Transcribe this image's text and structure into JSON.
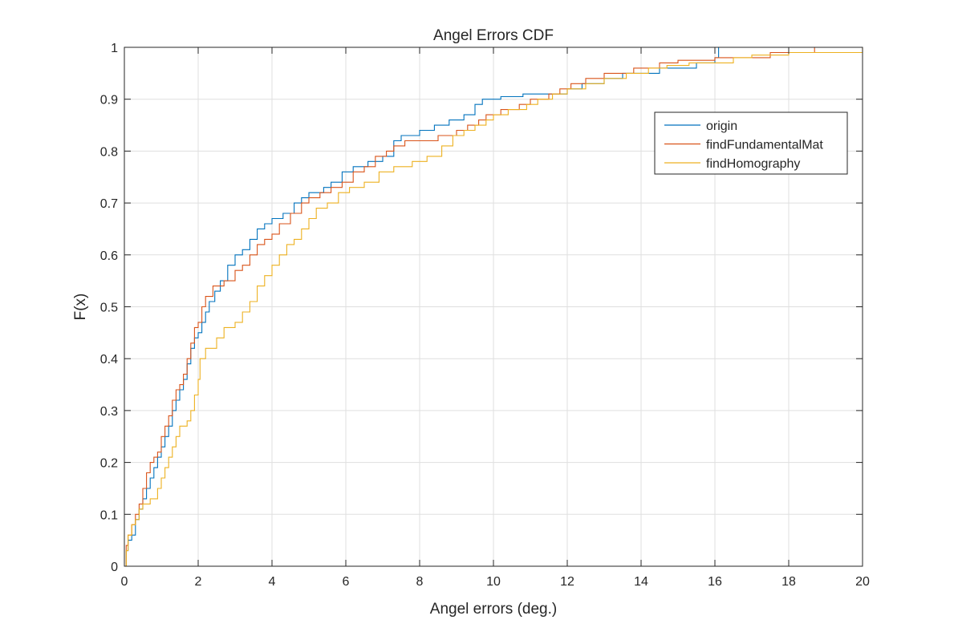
{
  "chart_data": {
    "type": "line",
    "step": true,
    "title": "Angel Errors CDF",
    "xlabel": "Angel errors (deg.)",
    "ylabel": "F(x)",
    "xlim": [
      0,
      20
    ],
    "ylim": [
      0,
      1
    ],
    "grid": true,
    "legend_position": "top-right",
    "x_ticks": [
      "0",
      "2",
      "4",
      "6",
      "8",
      "10",
      "12",
      "14",
      "16",
      "18",
      "20"
    ],
    "y_ticks": [
      "0",
      "0.1",
      "0.2",
      "0.3",
      "0.4",
      "0.5",
      "0.6",
      "0.7",
      "0.8",
      "0.9",
      "1"
    ],
    "series": [
      {
        "name": "origin",
        "color": "#0072bd",
        "points": [
          [
            0,
            0
          ],
          [
            0.05,
            0.03
          ],
          [
            0.1,
            0.05
          ],
          [
            0.2,
            0.06
          ],
          [
            0.3,
            0.09
          ],
          [
            0.4,
            0.11
          ],
          [
            0.5,
            0.13
          ],
          [
            0.6,
            0.15
          ],
          [
            0.7,
            0.17
          ],
          [
            0.8,
            0.19
          ],
          [
            0.9,
            0.21
          ],
          [
            1.0,
            0.23
          ],
          [
            1.1,
            0.25
          ],
          [
            1.2,
            0.27
          ],
          [
            1.3,
            0.3
          ],
          [
            1.4,
            0.32
          ],
          [
            1.5,
            0.34
          ],
          [
            1.6,
            0.36
          ],
          [
            1.7,
            0.39
          ],
          [
            1.8,
            0.42
          ],
          [
            1.9,
            0.44
          ],
          [
            2.0,
            0.45
          ],
          [
            2.1,
            0.47
          ],
          [
            2.2,
            0.49
          ],
          [
            2.3,
            0.51
          ],
          [
            2.45,
            0.53
          ],
          [
            2.6,
            0.55
          ],
          [
            2.8,
            0.58
          ],
          [
            3.0,
            0.6
          ],
          [
            3.2,
            0.61
          ],
          [
            3.4,
            0.63
          ],
          [
            3.6,
            0.65
          ],
          [
            3.8,
            0.66
          ],
          [
            4.0,
            0.67
          ],
          [
            4.3,
            0.68
          ],
          [
            4.6,
            0.7
          ],
          [
            4.8,
            0.71
          ],
          [
            5.0,
            0.72
          ],
          [
            5.4,
            0.73
          ],
          [
            5.6,
            0.74
          ],
          [
            5.9,
            0.76
          ],
          [
            6.2,
            0.77
          ],
          [
            6.6,
            0.78
          ],
          [
            7.0,
            0.79
          ],
          [
            7.3,
            0.82
          ],
          [
            7.5,
            0.83
          ],
          [
            8.0,
            0.84
          ],
          [
            8.4,
            0.85
          ],
          [
            8.8,
            0.86
          ],
          [
            9.2,
            0.87
          ],
          [
            9.5,
            0.89
          ],
          [
            9.7,
            0.9
          ],
          [
            10.2,
            0.905
          ],
          [
            10.8,
            0.91
          ],
          [
            12.0,
            0.92
          ],
          [
            12.4,
            0.93
          ],
          [
            13.0,
            0.94
          ],
          [
            13.5,
            0.95
          ],
          [
            14.5,
            0.96
          ],
          [
            15.5,
            0.97
          ],
          [
            16.0,
            0.98
          ],
          [
            16.1,
            1.0
          ],
          [
            18.0,
            1.0
          ]
        ]
      },
      {
        "name": "findFundamentalMat",
        "color": "#d95319",
        "points": [
          [
            0,
            0
          ],
          [
            0.05,
            0.04
          ],
          [
            0.1,
            0.06
          ],
          [
            0.2,
            0.08
          ],
          [
            0.3,
            0.1
          ],
          [
            0.4,
            0.12
          ],
          [
            0.5,
            0.15
          ],
          [
            0.6,
            0.18
          ],
          [
            0.7,
            0.2
          ],
          [
            0.8,
            0.21
          ],
          [
            0.9,
            0.22
          ],
          [
            1.0,
            0.25
          ],
          [
            1.1,
            0.27
          ],
          [
            1.2,
            0.29
          ],
          [
            1.3,
            0.32
          ],
          [
            1.4,
            0.34
          ],
          [
            1.5,
            0.35
          ],
          [
            1.6,
            0.37
          ],
          [
            1.7,
            0.4
          ],
          [
            1.8,
            0.43
          ],
          [
            1.9,
            0.46
          ],
          [
            2.0,
            0.47
          ],
          [
            2.1,
            0.5
          ],
          [
            2.2,
            0.52
          ],
          [
            2.4,
            0.54
          ],
          [
            2.7,
            0.55
          ],
          [
            3.0,
            0.57
          ],
          [
            3.2,
            0.58
          ],
          [
            3.4,
            0.6
          ],
          [
            3.6,
            0.62
          ],
          [
            3.8,
            0.63
          ],
          [
            4.0,
            0.64
          ],
          [
            4.2,
            0.66
          ],
          [
            4.5,
            0.68
          ],
          [
            4.8,
            0.7
          ],
          [
            5.0,
            0.71
          ],
          [
            5.3,
            0.72
          ],
          [
            5.6,
            0.73
          ],
          [
            5.9,
            0.74
          ],
          [
            6.2,
            0.76
          ],
          [
            6.5,
            0.77
          ],
          [
            6.8,
            0.79
          ],
          [
            7.1,
            0.8
          ],
          [
            7.3,
            0.81
          ],
          [
            7.6,
            0.82
          ],
          [
            7.9,
            0.82
          ],
          [
            8.5,
            0.83
          ],
          [
            9.0,
            0.84
          ],
          [
            9.3,
            0.85
          ],
          [
            9.6,
            0.86
          ],
          [
            9.8,
            0.87
          ],
          [
            10.2,
            0.88
          ],
          [
            10.7,
            0.89
          ],
          [
            11.0,
            0.9
          ],
          [
            11.5,
            0.91
          ],
          [
            11.8,
            0.92
          ],
          [
            12.1,
            0.93
          ],
          [
            12.5,
            0.94
          ],
          [
            13.0,
            0.95
          ],
          [
            13.8,
            0.96
          ],
          [
            14.5,
            0.97
          ],
          [
            15.0,
            0.975
          ],
          [
            16.0,
            0.98
          ],
          [
            17.5,
            0.99
          ],
          [
            18.7,
            1.0
          ],
          [
            19.0,
            1.0
          ]
        ]
      },
      {
        "name": "findHomography",
        "color": "#edb120",
        "points": [
          [
            0,
            0
          ],
          [
            0.05,
            0.03
          ],
          [
            0.1,
            0.06
          ],
          [
            0.2,
            0.08
          ],
          [
            0.3,
            0.09
          ],
          [
            0.4,
            0.11
          ],
          [
            0.5,
            0.12
          ],
          [
            0.7,
            0.13
          ],
          [
            0.9,
            0.15
          ],
          [
            1.0,
            0.17
          ],
          [
            1.1,
            0.19
          ],
          [
            1.2,
            0.21
          ],
          [
            1.3,
            0.23
          ],
          [
            1.4,
            0.25
          ],
          [
            1.5,
            0.27
          ],
          [
            1.7,
            0.28
          ],
          [
            1.8,
            0.3
          ],
          [
            1.9,
            0.33
          ],
          [
            2.0,
            0.36
          ],
          [
            2.05,
            0.4
          ],
          [
            2.2,
            0.42
          ],
          [
            2.5,
            0.44
          ],
          [
            2.7,
            0.46
          ],
          [
            3.0,
            0.47
          ],
          [
            3.2,
            0.49
          ],
          [
            3.4,
            0.51
          ],
          [
            3.6,
            0.54
          ],
          [
            3.8,
            0.56
          ],
          [
            4.0,
            0.58
          ],
          [
            4.2,
            0.6
          ],
          [
            4.4,
            0.62
          ],
          [
            4.6,
            0.63
          ],
          [
            4.8,
            0.65
          ],
          [
            5.0,
            0.67
          ],
          [
            5.2,
            0.69
          ],
          [
            5.5,
            0.7
          ],
          [
            5.8,
            0.72
          ],
          [
            6.1,
            0.73
          ],
          [
            6.5,
            0.74
          ],
          [
            6.9,
            0.76
          ],
          [
            7.3,
            0.77
          ],
          [
            7.8,
            0.78
          ],
          [
            8.2,
            0.79
          ],
          [
            8.6,
            0.81
          ],
          [
            8.9,
            0.83
          ],
          [
            9.2,
            0.84
          ],
          [
            9.5,
            0.85
          ],
          [
            9.8,
            0.86
          ],
          [
            10.0,
            0.87
          ],
          [
            10.4,
            0.88
          ],
          [
            10.9,
            0.89
          ],
          [
            11.2,
            0.9
          ],
          [
            11.6,
            0.91
          ],
          [
            12.0,
            0.92
          ],
          [
            12.5,
            0.93
          ],
          [
            13.0,
            0.94
          ],
          [
            13.6,
            0.95
          ],
          [
            14.2,
            0.96
          ],
          [
            14.7,
            0.965
          ],
          [
            15.3,
            0.97
          ],
          [
            16.0,
            0.97
          ],
          [
            16.5,
            0.98
          ],
          [
            17.0,
            0.985
          ],
          [
            18.0,
            0.99
          ],
          [
            20.0,
            1.0
          ]
        ]
      }
    ]
  }
}
